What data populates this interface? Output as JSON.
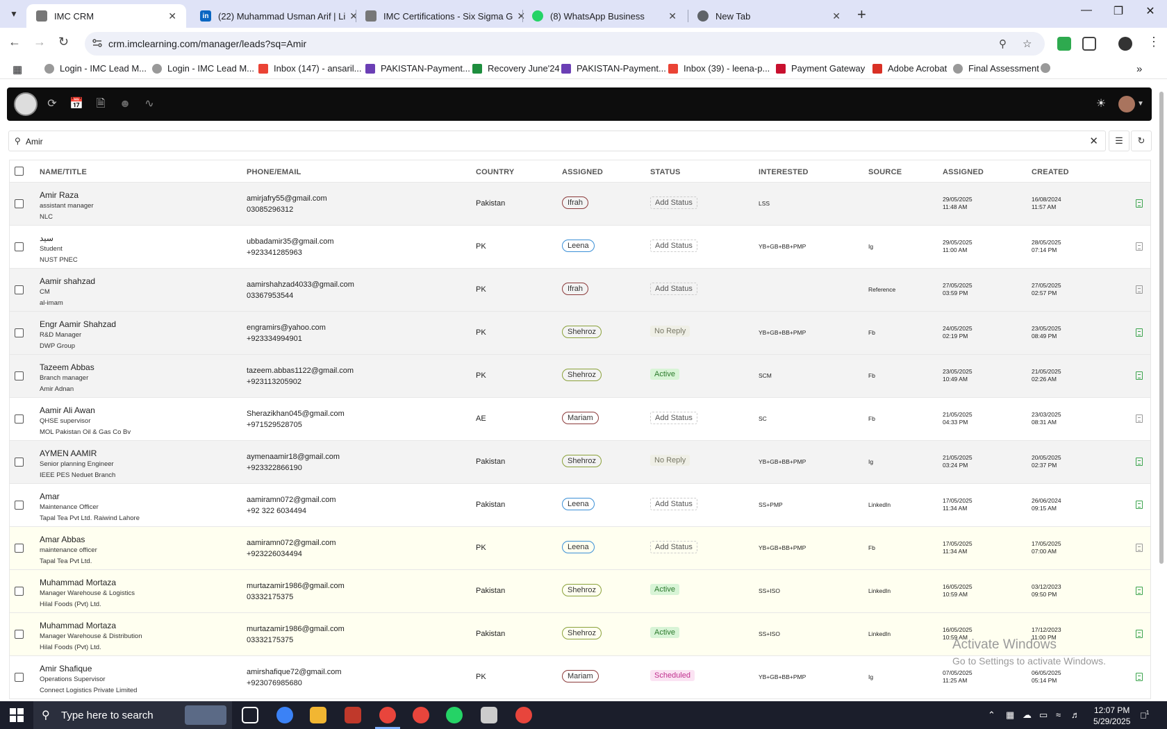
{
  "browser": {
    "tabs": [
      {
        "title": "IMC CRM",
        "active": true,
        "favicon": "imc-icon"
      },
      {
        "title": "(22) Muhammad Usman Arif | Li",
        "active": false,
        "favicon": "linkedin-icon"
      },
      {
        "title": "IMC Certifications - Six Sigma G",
        "active": false,
        "favicon": "imc-icon"
      },
      {
        "title": "(8) WhatsApp Business",
        "active": false,
        "favicon": "whatsapp-icon"
      },
      {
        "title": "New Tab",
        "active": false,
        "favicon": "chrome-icon"
      }
    ],
    "url": "crm.imclearning.com/manager/leads?sq=Amir",
    "bookmarks": [
      "Login - IMC Lead M...",
      "Login - IMC Lead M...",
      "Inbox (147) - ansaril...",
      "PAKISTAN-Payment...",
      "Recovery June'24",
      "PAKISTAN-Payment...",
      "Inbox (39) - leena-p...",
      "Payment Gateway",
      "Adobe Acrobat",
      "Final Assessment"
    ]
  },
  "search": {
    "value": "Amir"
  },
  "table": {
    "headers": [
      "NAME/TITLE",
      "PHONE/EMAIL",
      "COUNTRY",
      "ASSIGNED",
      "STATUS",
      "INTERESTED",
      "SOURCE",
      "ASSIGNED",
      "CREATED"
    ],
    "rows": [
      {
        "name": "Amir Raza",
        "title": "assistant manager",
        "org": "NLC",
        "email": "amirjafry55@gmail.com",
        "phone": "03085296312",
        "country": "Pakistan",
        "assigned": "Ifrah",
        "status": "Add Status",
        "interested": "LSS",
        "source": "",
        "assigned_date": "29/05/2025",
        "assigned_time": "11:48 AM",
        "created_date": "16/08/2024",
        "created_time": "11:57 AM"
      },
      {
        "name": "سید",
        "title": "Student",
        "org": "NUST PNEC",
        "email": "ubbadamir35@gmail.com",
        "phone": "+923341285963",
        "country": "PK",
        "assigned": "Leena",
        "status": "Add Status",
        "interested": "YB+GB+BB+PMP",
        "source": "Ig",
        "assigned_date": "29/05/2025",
        "assigned_time": "11:00 AM",
        "created_date": "28/05/2025",
        "created_time": "07:14 PM"
      },
      {
        "name": "Aamir shahzad",
        "title": "CM",
        "org": "al-imam",
        "email": "aamirshahzad4033@gmail.com",
        "phone": "03367953544",
        "country": "PK",
        "assigned": "Ifrah",
        "status": "Add Status",
        "interested": "",
        "source": "Reference",
        "assigned_date": "27/05/2025",
        "assigned_time": "03:59 PM",
        "created_date": "27/05/2025",
        "created_time": "02:57 PM"
      },
      {
        "name": "Engr Aamir Shahzad",
        "title": "R&D Manager",
        "org": "DWP Group",
        "email": "engramirs@yahoo.com",
        "phone": "+923334994901",
        "country": "PK",
        "assigned": "Shehroz",
        "status": "No Reply",
        "interested": "YB+GB+BB+PMP",
        "source": "Fb",
        "assigned_date": "24/05/2025",
        "assigned_time": "02:19 PM",
        "created_date": "23/05/2025",
        "created_time": "08:49 PM"
      },
      {
        "name": "Tazeem Abbas",
        "title": "Branch manager",
        "org": "Amir Adnan",
        "email": "tazeem.abbas1122@gmail.com",
        "phone": "+923113205902",
        "country": "PK",
        "assigned": "Shehroz",
        "status": "Active",
        "interested": "SCM",
        "source": "Fb",
        "assigned_date": "23/05/2025",
        "assigned_time": "10:49 AM",
        "created_date": "21/05/2025",
        "created_time": "02:26 AM"
      },
      {
        "name": "Aamir Ali Awan",
        "title": "QHSE supervisor",
        "org": "MOL Pakistan Oil & Gas Co Bv",
        "email": "Sherazikhan045@gmail.com",
        "phone": "+971529528705",
        "country": "AE",
        "assigned": "Mariam",
        "status": "Add Status",
        "interested": "SC",
        "source": "Fb",
        "assigned_date": "21/05/2025",
        "assigned_time": "04:33 PM",
        "created_date": "23/03/2025",
        "created_time": "08:31 AM"
      },
      {
        "name": "AYMEN AAMIR",
        "title": "Senior planning Engineer",
        "org": "IEEE PES Neduet Branch",
        "email": "aymenaamir18@gmail.com",
        "phone": "+923322866190",
        "country": "Pakistan",
        "assigned": "Shehroz",
        "status": "No Reply",
        "interested": "YB+GB+BB+PMP",
        "source": "Ig",
        "assigned_date": "21/05/2025",
        "assigned_time": "03:24 PM",
        "created_date": "20/05/2025",
        "created_time": "02:37 PM"
      },
      {
        "name": "Amar",
        "title": "Maintenance Officer",
        "org": "Tapal Tea Pvt Ltd. Raiwind Lahore",
        "email": "aamiramn072@gmail.com",
        "phone": "+92 322 6034494",
        "country": "Pakistan",
        "assigned": "Leena",
        "status": "Add Status",
        "interested": "SS+PMP",
        "source": "LinkedIn",
        "assigned_date": "17/05/2025",
        "assigned_time": "11:34 AM",
        "created_date": "26/06/2024",
        "created_time": "09:15 AM"
      },
      {
        "name": "Amar Abbas",
        "title": "maintenance officer",
        "org": "Tapal Tea Pvt Ltd.",
        "email": "aamiramn072@gmail.com",
        "phone": "+923226034494",
        "country": "PK",
        "assigned": "Leena",
        "status": "Add Status",
        "interested": "YB+GB+BB+PMP",
        "source": "Fb",
        "assigned_date": "17/05/2025",
        "assigned_time": "11:34 AM",
        "created_date": "17/05/2025",
        "created_time": "07:00 AM"
      },
      {
        "name": "Muhammad Mortaza",
        "title": "Manager Warehouse & Logistics",
        "org": "Hilal Foods (Pvt) Ltd.",
        "email": "murtazamir1986@gmail.com",
        "phone": "03332175375",
        "country": "Pakistan",
        "assigned": "Shehroz",
        "status": "Active",
        "interested": "SS+ISO",
        "source": "LinkedIn",
        "assigned_date": "16/05/2025",
        "assigned_time": "10:59 AM",
        "created_date": "03/12/2023",
        "created_time": "09:50 PM"
      },
      {
        "name": "Muhammad Mortaza",
        "title": "Manager Warehouse & Distribution",
        "org": "Hilal Foods (Pvt) Ltd.",
        "email": "murtazamir1986@gmail.com",
        "phone": "03332175375",
        "country": "Pakistan",
        "assigned": "Shehroz",
        "status": "Active",
        "interested": "SS+ISO",
        "source": "LinkedIn",
        "assigned_date": "16/05/2025",
        "assigned_time": "10:59 AM",
        "created_date": "17/12/2023",
        "created_time": "11:00 PM"
      },
      {
        "name": "Amir Shafique",
        "title": "Operations Supervisor",
        "org": "Connect Logistics Private Limited",
        "email": "amirshafique72@gmail.com",
        "phone": "+923076985680",
        "country": "PK",
        "assigned": "Mariam",
        "status": "Scheduled",
        "interested": "YB+GB+BB+PMP",
        "source": "Ig",
        "assigned_date": "07/05/2025",
        "assigned_time": "11:25 AM",
        "created_date": "06/05/2025",
        "created_time": "05:14 PM"
      }
    ]
  },
  "watermark": {
    "line1": "Activate Windows",
    "line2": "Go to Settings to activate Windows."
  },
  "taskbar": {
    "search_placeholder": "Type here to search",
    "time": "12:07 PM",
    "date": "5/29/2025",
    "notifications": "1"
  },
  "colors": {
    "assigned_ifrah": "#8b3a3a",
    "assigned_leena": "#3a8fd6",
    "assigned_shehroz": "#8aa13a",
    "assigned_mariam": "#8b3a3a"
  }
}
